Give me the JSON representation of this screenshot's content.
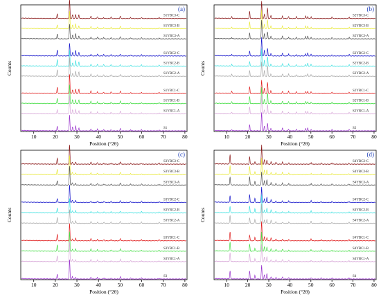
{
  "figure": {
    "type": "multi-panel XRD patterns"
  },
  "chart_data": [
    {
      "type": "line",
      "panel_label": "(a)",
      "xlabel": "Position (°2θ)",
      "ylabel": "Counts",
      "xlim": [
        4,
        81
      ],
      "xticks": [
        10,
        20,
        30,
        40,
        50,
        60,
        70,
        80
      ],
      "grid": false,
      "legend": "series labels printed at right end of each trace",
      "series": [
        {
          "name": "S1YBC3-C",
          "color": "#8b1a1a",
          "group": 0
        },
        {
          "name": "S1YBC3-B",
          "color": "#e8e83a",
          "group": 0
        },
        {
          "name": "S1YBC3-A",
          "color": "#555555",
          "group": 0
        },
        {
          "name": "S1YBC2-C",
          "color": "#1a1acc",
          "group": 1
        },
        {
          "name": "S1YBC2-B",
          "color": "#3ee0e0",
          "group": 1
        },
        {
          "name": "S1YBC2-A",
          "color": "#aaaaaa",
          "group": 1
        },
        {
          "name": "S1YBC1-C",
          "color": "#e02020",
          "group": 2
        },
        {
          "name": "S1YBC1-B",
          "color": "#44dd44",
          "group": 2
        },
        {
          "name": "S1YBC1-A",
          "color": "#d8a8d8",
          "group": 2
        },
        {
          "name": "S1",
          "color": "#9933cc",
          "group": 3
        }
      ],
      "peaks": [
        {
          "x": 20.9,
          "rel": 0.32
        },
        {
          "x": 26.6,
          "rel": 1.0
        },
        {
          "x": 28.0,
          "rel": 0.2
        },
        {
          "x": 29.4,
          "rel": 0.28
        },
        {
          "x": 30.9,
          "rel": 0.22
        },
        {
          "x": 36.5,
          "rel": 0.12
        },
        {
          "x": 39.5,
          "rel": 0.1
        },
        {
          "x": 42.4,
          "rel": 0.08
        },
        {
          "x": 45.8,
          "rel": 0.08
        },
        {
          "x": 50.1,
          "rel": 0.12
        },
        {
          "x": 54.9,
          "rel": 0.06
        },
        {
          "x": 59.9,
          "rel": 0.07
        },
        {
          "x": 68.1,
          "rel": 0.06
        }
      ]
    },
    {
      "type": "line",
      "panel_label": "(b)",
      "xlabel": "Position (°2θ)",
      "ylabel": "Counts",
      "xlim": [
        4,
        81
      ],
      "xticks": [
        10,
        20,
        30,
        40,
        50,
        60,
        70,
        80
      ],
      "grid": false,
      "legend": "series labels printed at right end of each trace",
      "series": [
        {
          "name": "S2YBC3-C",
          "color": "#8b1a1a",
          "group": 0
        },
        {
          "name": "S2YBC3-B",
          "color": "#e8e83a",
          "group": 0
        },
        {
          "name": "S2YBC3-A",
          "color": "#555555",
          "group": 0
        },
        {
          "name": "S2YBC2-C",
          "color": "#1a1acc",
          "group": 1
        },
        {
          "name": "S2YBC2-B",
          "color": "#3ee0e0",
          "group": 1
        },
        {
          "name": "S2YBC2-A",
          "color": "#aaaaaa",
          "group": 1
        },
        {
          "name": "S2YBC1-C",
          "color": "#e02020",
          "group": 2
        },
        {
          "name": "S2YBC1-B",
          "color": "#44dd44",
          "group": 2
        },
        {
          "name": "S2YBC1-A",
          "color": "#d8a8d8",
          "group": 2
        },
        {
          "name": "S2",
          "color": "#9933cc",
          "group": 3
        }
      ],
      "peaks": [
        {
          "x": 12.4,
          "rel": 0.1
        },
        {
          "x": 20.9,
          "rel": 0.35
        },
        {
          "x": 26.6,
          "rel": 1.0
        },
        {
          "x": 27.9,
          "rel": 0.3
        },
        {
          "x": 29.4,
          "rel": 0.55
        },
        {
          "x": 31.0,
          "rel": 0.15
        },
        {
          "x": 36.5,
          "rel": 0.15
        },
        {
          "x": 39.4,
          "rel": 0.12
        },
        {
          "x": 43.1,
          "rel": 0.1
        },
        {
          "x": 47.5,
          "rel": 0.12
        },
        {
          "x": 48.5,
          "rel": 0.15
        },
        {
          "x": 50.1,
          "rel": 0.1
        },
        {
          "x": 60.0,
          "rel": 0.08
        },
        {
          "x": 68.2,
          "rel": 0.08
        }
      ]
    },
    {
      "type": "line",
      "panel_label": "(c)",
      "xlabel": "Position (°2θ)",
      "ylabel": "Counts",
      "xlim": [
        4,
        81
      ],
      "xticks": [
        10,
        20,
        30,
        40,
        50,
        60,
        70,
        80
      ],
      "grid": false,
      "legend": "series labels printed at right end of each trace",
      "series": [
        {
          "name": "S3YBC3-C",
          "color": "#8b1a1a",
          "group": 0
        },
        {
          "name": "S3YBC3-B",
          "color": "#e8e83a",
          "group": 0
        },
        {
          "name": "S3YBC3-A",
          "color": "#555555",
          "group": 0
        },
        {
          "name": "S3YBC2-C",
          "color": "#1a1acc",
          "group": 1
        },
        {
          "name": "S3YBC2-B",
          "color": "#3ee0e0",
          "group": 1
        },
        {
          "name": "S3YBC2-A",
          "color": "#aaaaaa",
          "group": 1
        },
        {
          "name": "S3YBC1-C",
          "color": "#e02020",
          "group": 2
        },
        {
          "name": "S3YBC1-B",
          "color": "#44dd44",
          "group": 2
        },
        {
          "name": "S3YBC1-A",
          "color": "#d8a8d8",
          "group": 2
        },
        {
          "name": "S3",
          "color": "#9933cc",
          "group": 3
        }
      ],
      "peaks": [
        {
          "x": 20.9,
          "rel": 0.3
        },
        {
          "x": 26.6,
          "rel": 1.0
        },
        {
          "x": 27.9,
          "rel": 0.12
        },
        {
          "x": 29.4,
          "rel": 0.12
        },
        {
          "x": 36.5,
          "rel": 0.1
        },
        {
          "x": 39.5,
          "rel": 0.08
        },
        {
          "x": 42.5,
          "rel": 0.06
        },
        {
          "x": 45.8,
          "rel": 0.06
        },
        {
          "x": 50.1,
          "rel": 0.12
        },
        {
          "x": 54.9,
          "rel": 0.05
        },
        {
          "x": 59.9,
          "rel": 0.07
        },
        {
          "x": 68.1,
          "rel": 0.05
        }
      ]
    },
    {
      "type": "line",
      "panel_label": "(d)",
      "xlabel": "Position (°2θ)",
      "ylabel": "Counts",
      "xlim": [
        4,
        81
      ],
      "xticks": [
        10,
        20,
        30,
        40,
        50,
        60,
        70,
        80
      ],
      "grid": false,
      "legend": "series labels printed at right end of each trace",
      "series": [
        {
          "name": "S4YBC3-C",
          "color": "#8b1a1a",
          "group": 0
        },
        {
          "name": "S4YBC3-B",
          "color": "#e8e83a",
          "group": 0
        },
        {
          "name": "S4YBC3-A",
          "color": "#555555",
          "group": 0
        },
        {
          "name": "S4YBC2-C",
          "color": "#1a1acc",
          "group": 1
        },
        {
          "name": "S4YBC2-B",
          "color": "#3ee0e0",
          "group": 1
        },
        {
          "name": "S4YBC2-A",
          "color": "#aaaaaa",
          "group": 1
        },
        {
          "name": "S4YBC1-C",
          "color": "#e02020",
          "group": 2
        },
        {
          "name": "S4YBC1-B",
          "color": "#44dd44",
          "group": 2
        },
        {
          "name": "S4YBC1-A",
          "color": "#d8a8d8",
          "group": 2
        },
        {
          "name": "S4",
          "color": "#9933cc",
          "group": 3
        }
      ],
      "peaks": [
        {
          "x": 11.6,
          "rel": 0.45
        },
        {
          "x": 20.9,
          "rel": 0.4
        },
        {
          "x": 23.4,
          "rel": 0.2
        },
        {
          "x": 26.6,
          "rel": 1.0
        },
        {
          "x": 27.9,
          "rel": 0.22
        },
        {
          "x": 29.1,
          "rel": 0.25
        },
        {
          "x": 31.1,
          "rel": 0.15
        },
        {
          "x": 33.4,
          "rel": 0.1
        },
        {
          "x": 36.5,
          "rel": 0.1
        },
        {
          "x": 39.5,
          "rel": 0.08
        },
        {
          "x": 50.1,
          "rel": 0.1
        },
        {
          "x": 54.9,
          "rel": 0.06
        },
        {
          "x": 60.0,
          "rel": 0.06
        },
        {
          "x": 68.1,
          "rel": 0.06
        }
      ]
    }
  ]
}
